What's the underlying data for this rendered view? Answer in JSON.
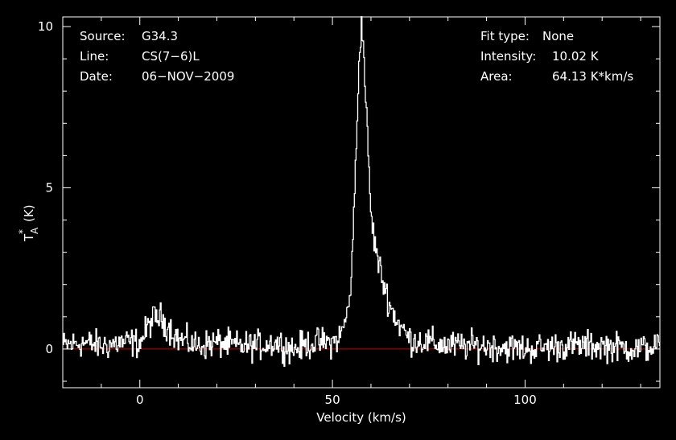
{
  "info_left": {
    "source_label": "Source:",
    "source_value": "G34.3",
    "line_label": "Line:",
    "line_value": "CS(7−6)L",
    "date_label": "Date:",
    "date_value": "06−NOV−2009"
  },
  "info_right": {
    "fit_label": "Fit type:",
    "fit_value": "None",
    "intensity_label": "Intensity:",
    "intensity_value": "10.02 K",
    "area_label": "Area:",
    "area_value": "64.13 K*km/s"
  },
  "colors": {
    "background": "#000000",
    "trace": "#ffffff",
    "baseline": "#cc0000",
    "axes": "#ffffff"
  },
  "chart_data": {
    "type": "line",
    "xlabel": "Velocity (km/s)",
    "ylabel_main": "T",
    "ylabel_sup": "*",
    "ylabel_sub": "A",
    "ylabel_unit": "(K)",
    "xlim": [
      -20,
      135
    ],
    "ylim": [
      -1.2,
      10.3
    ],
    "xticks": [
      0,
      50,
      100
    ],
    "yticks": [
      0,
      5,
      10
    ],
    "baseline": 0,
    "x": [
      -20,
      -15,
      -10,
      -5,
      0,
      3,
      5,
      8,
      10,
      15,
      20,
      25,
      30,
      35,
      40,
      45,
      50,
      52,
      54,
      55,
      56,
      57,
      57.5,
      58,
      59,
      60,
      61,
      62,
      63,
      64,
      65,
      67,
      70,
      75,
      80,
      90,
      100,
      110,
      120,
      130,
      135
    ],
    "y": [
      0.1,
      0.2,
      0.1,
      0.2,
      0.2,
      0.9,
      1.0,
      0.6,
      0.3,
      0.1,
      0.2,
      0.1,
      0.1,
      0.2,
      0.0,
      0.2,
      0.2,
      0.4,
      1.2,
      2.6,
      6.0,
      9.6,
      10.0,
      9.3,
      6.5,
      4.0,
      3.2,
      2.6,
      2.1,
      1.7,
      1.3,
      0.8,
      0.3,
      0.2,
      0.1,
      0.1,
      0.0,
      0.1,
      0.1,
      0.0,
      0.1
    ]
  }
}
